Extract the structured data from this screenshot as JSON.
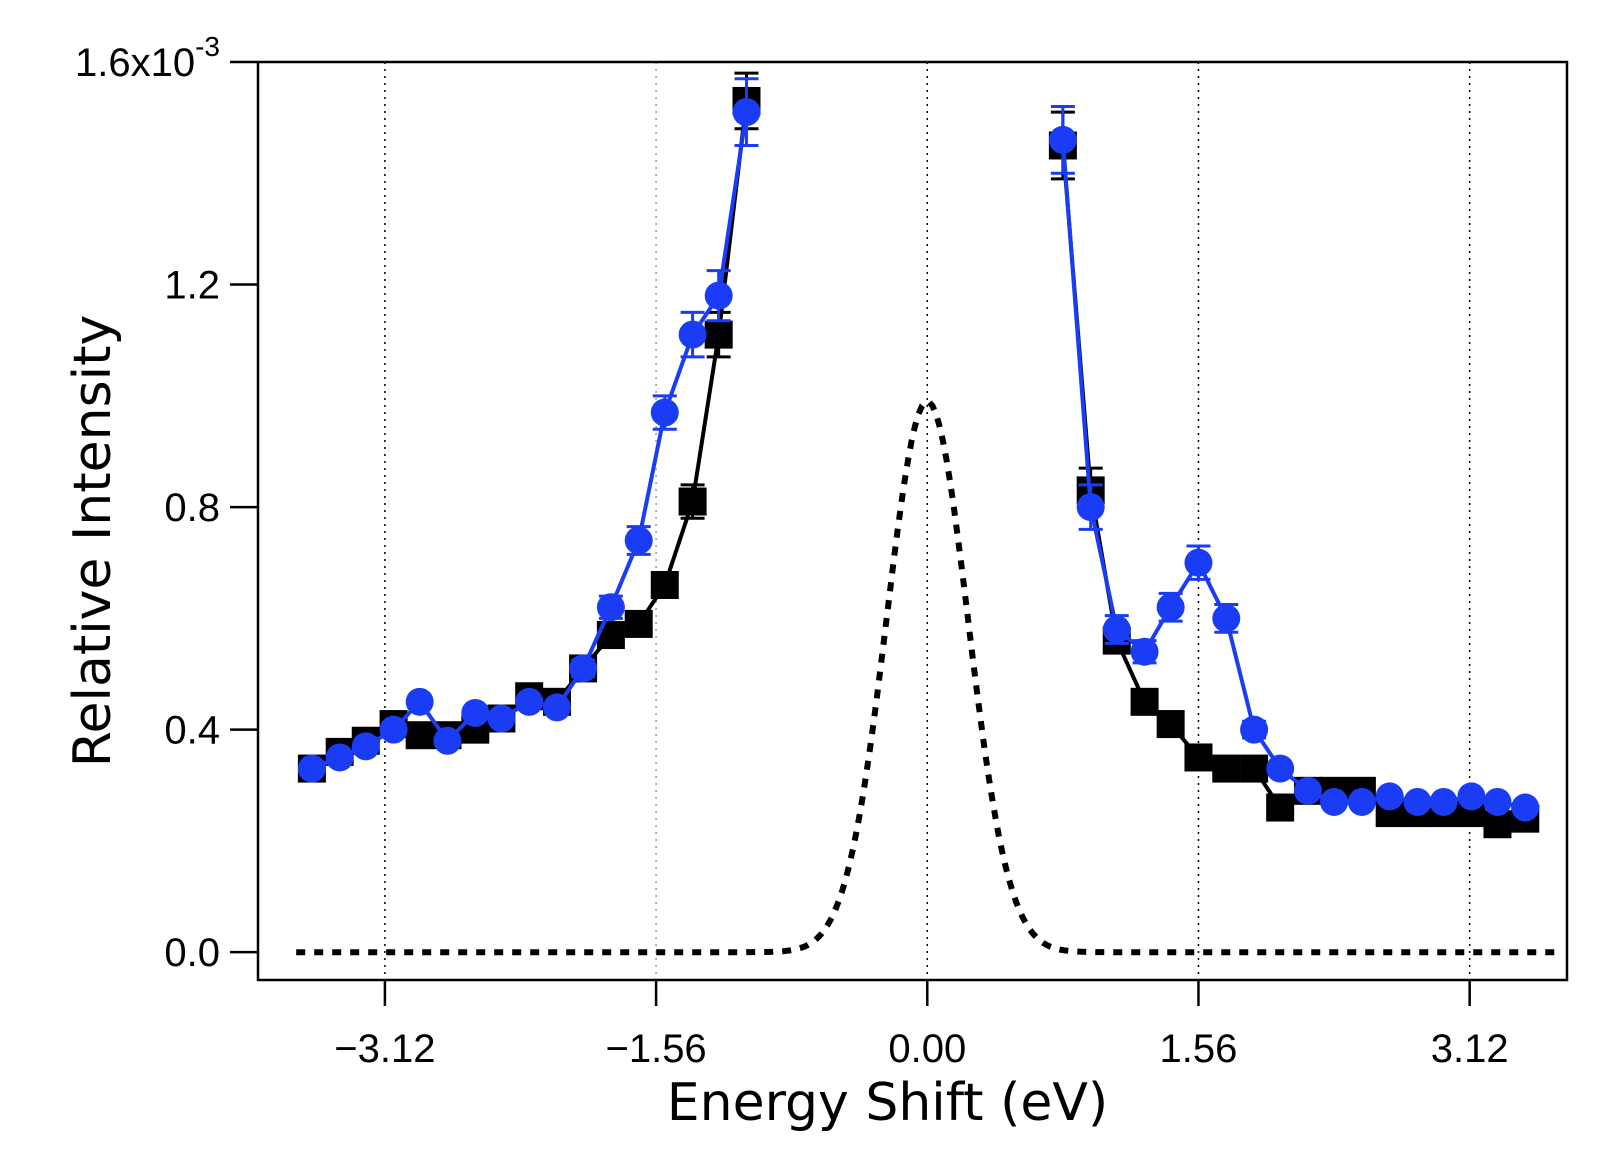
{
  "chart_data": {
    "type": "line",
    "title": "",
    "xlabel": "Energy Shift (eV)",
    "ylabel": "Relative Intensity",
    "xlim": [
      -3.85,
      3.68
    ],
    "ylim": [
      -0.05,
      1.6
    ],
    "x_ticks": [
      -3.12,
      -1.56,
      0.0,
      1.56,
      3.12
    ],
    "x_tick_labels": [
      "−3.12",
      "−1.56",
      "0.00",
      "1.56",
      "3.12"
    ],
    "y_ticks": [
      0.0,
      0.4,
      0.8,
      1.2,
      1.6
    ],
    "y_tick_labels": [
      "0.0",
      "0.4",
      "0.8",
      "1.2",
      "1.6x10"
    ],
    "y_exponent": "-3",
    "grid": "vertical dotted lines at x ticks",
    "series": [
      {
        "name": "black squares",
        "color": "#000000",
        "marker": "square",
        "points": [
          [
            -3.54,
            0.33
          ],
          [
            -3.38,
            0.36
          ],
          [
            -3.23,
            0.38
          ],
          [
            -3.07,
            0.41
          ],
          [
            -2.92,
            0.39
          ],
          [
            -2.76,
            0.39
          ],
          [
            -2.6,
            0.4
          ],
          [
            -2.45,
            0.42
          ],
          [
            -2.29,
            0.46
          ],
          [
            -2.13,
            0.45
          ],
          [
            -1.98,
            0.51
          ],
          [
            -1.82,
            0.57
          ],
          [
            -1.66,
            0.59
          ],
          [
            -1.51,
            0.66
          ],
          [
            -1.35,
            0.81
          ],
          [
            -1.2,
            1.11
          ],
          [
            -1.04,
            1.53
          ]
        ],
        "errors": [
          0.01,
          0.01,
          0.01,
          0.01,
          0.01,
          0.01,
          0.01,
          0.01,
          0.01,
          0.01,
          0.01,
          0.01,
          0.015,
          0.02,
          0.03,
          0.04,
          0.05
        ]
      },
      {
        "name": "blue circles",
        "color": "#1a3cf5",
        "marker": "circle",
        "points": [
          [
            -3.54,
            0.33
          ],
          [
            -3.38,
            0.35
          ],
          [
            -3.23,
            0.37
          ],
          [
            -3.07,
            0.4
          ],
          [
            -2.92,
            0.45
          ],
          [
            -2.76,
            0.38
          ],
          [
            -2.6,
            0.43
          ],
          [
            -2.45,
            0.42
          ],
          [
            -2.29,
            0.45
          ],
          [
            -2.13,
            0.44
          ],
          [
            -1.98,
            0.51
          ],
          [
            -1.82,
            0.62
          ],
          [
            -1.66,
            0.74
          ],
          [
            -1.51,
            0.97
          ],
          [
            -1.35,
            1.11
          ],
          [
            -1.2,
            1.18
          ],
          [
            -1.04,
            1.51
          ]
        ],
        "errors": [
          0.01,
          0.01,
          0.01,
          0.01,
          0.01,
          0.01,
          0.01,
          0.01,
          0.01,
          0.01,
          0.015,
          0.02,
          0.025,
          0.03,
          0.04,
          0.045,
          0.06
        ]
      },
      {
        "name": "black squares (right)",
        "color": "#000000",
        "marker": "square",
        "points": [
          [
            0.78,
            1.45
          ],
          [
            0.94,
            0.83
          ],
          [
            1.09,
            0.56
          ],
          [
            1.25,
            0.45
          ],
          [
            1.4,
            0.41
          ],
          [
            1.56,
            0.35
          ],
          [
            1.72,
            0.33
          ],
          [
            1.88,
            0.33
          ],
          [
            2.03,
            0.26
          ],
          [
            2.19,
            0.29
          ],
          [
            2.34,
            0.29
          ],
          [
            2.5,
            0.29
          ],
          [
            2.66,
            0.25
          ],
          [
            2.82,
            0.25
          ],
          [
            2.97,
            0.25
          ],
          [
            3.13,
            0.25
          ],
          [
            3.28,
            0.23
          ],
          [
            3.44,
            0.24
          ]
        ],
        "errors": [
          0.06,
          0.04,
          0.02,
          0.015,
          0.01,
          0.01,
          0.01,
          0.01,
          0.01,
          0.01,
          0.01,
          0.01,
          0.01,
          0.01,
          0.01,
          0.01,
          0.01,
          0.01
        ]
      },
      {
        "name": "blue circles (right)",
        "color": "#1a3cf5",
        "marker": "circle",
        "points": [
          [
            0.78,
            1.46
          ],
          [
            0.94,
            0.8
          ],
          [
            1.09,
            0.58
          ],
          [
            1.25,
            0.54
          ],
          [
            1.4,
            0.62
          ],
          [
            1.56,
            0.7
          ],
          [
            1.72,
            0.6
          ],
          [
            1.88,
            0.4
          ],
          [
            2.03,
            0.33
          ],
          [
            2.19,
            0.29
          ],
          [
            2.34,
            0.27
          ],
          [
            2.5,
            0.27
          ],
          [
            2.66,
            0.28
          ],
          [
            2.82,
            0.27
          ],
          [
            2.97,
            0.27
          ],
          [
            3.13,
            0.28
          ],
          [
            3.28,
            0.27
          ],
          [
            3.44,
            0.26
          ]
        ],
        "errors": [
          0.06,
          0.04,
          0.025,
          0.02,
          0.025,
          0.03,
          0.025,
          0.015,
          0.01,
          0.01,
          0.01,
          0.01,
          0.01,
          0.01,
          0.01,
          0.01,
          0.01,
          0.01
        ]
      },
      {
        "name": "elastic line",
        "color": "#000000",
        "style": "dotted",
        "type": "gaussian",
        "center": 0.0,
        "amplitude": 0.99,
        "fwhm": 0.55,
        "x_range": [
          -3.63,
          3.63
        ]
      }
    ]
  }
}
